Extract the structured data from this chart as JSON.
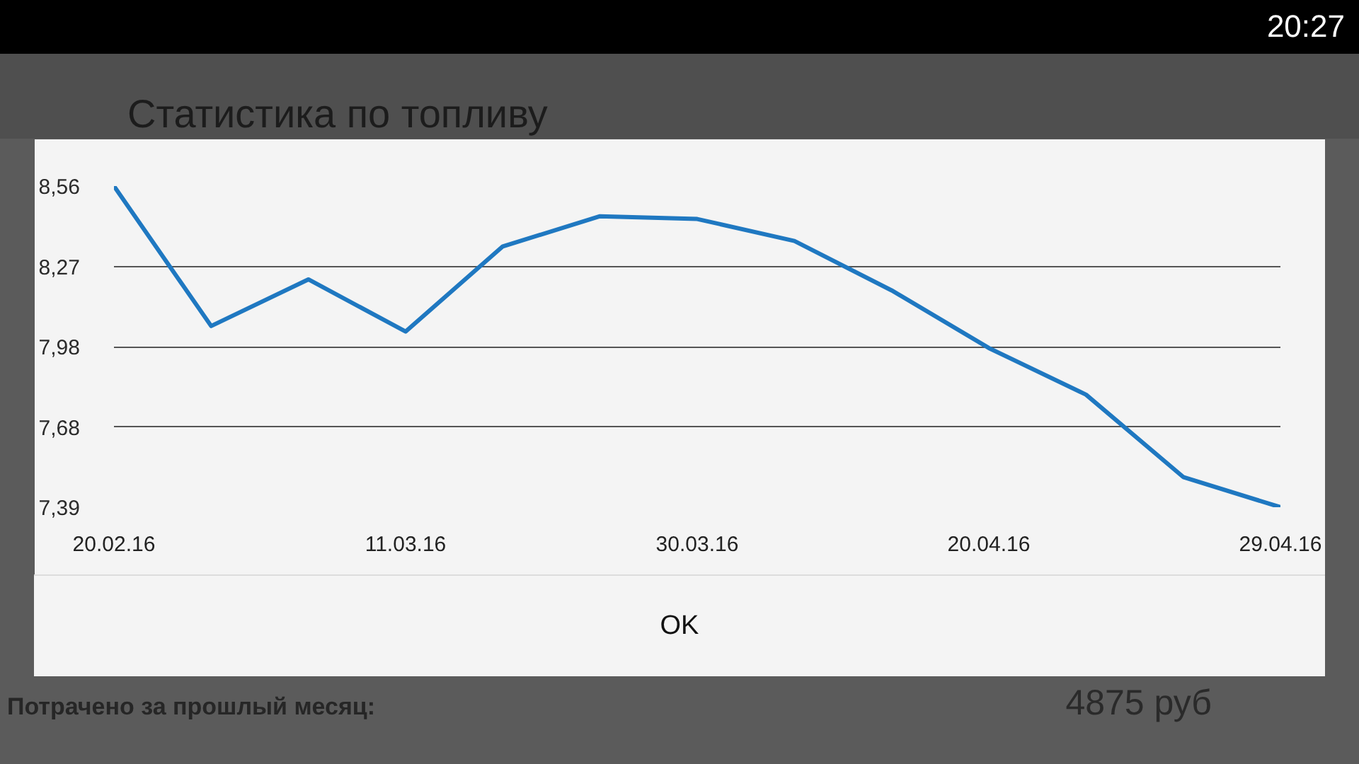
{
  "chart_data": {
    "type": "line",
    "title": "Статистика по топливу",
    "categories": [
      "20.02.16",
      null,
      null,
      "11.03.16",
      null,
      null,
      "30.03.16",
      null,
      null,
      "20.04.16",
      null,
      null,
      "29.04.16"
    ],
    "values": [
      8.56,
      8.05,
      8.22,
      8.03,
      8.34,
      8.45,
      8.44,
      8.36,
      8.18,
      7.97,
      7.8,
      7.5,
      7.39
    ],
    "color": "#1f78c1",
    "line_style": "solid",
    "ylim": [
      7.39,
      8.56
    ],
    "yticks": [
      {
        "value": 7.39,
        "label": "7,39"
      },
      {
        "value": 7.6825,
        "label": "7,68"
      },
      {
        "value": 7.975,
        "label": "7,98"
      },
      {
        "value": 8.2675,
        "label": "8,27"
      },
      {
        "value": 8.56,
        "label": "8,56"
      }
    ],
    "grid": "y",
    "annotations": [
      "20:27",
      "Потрачено за прошлый месяц:",
      "4875 руб",
      "OK"
    ]
  }
}
